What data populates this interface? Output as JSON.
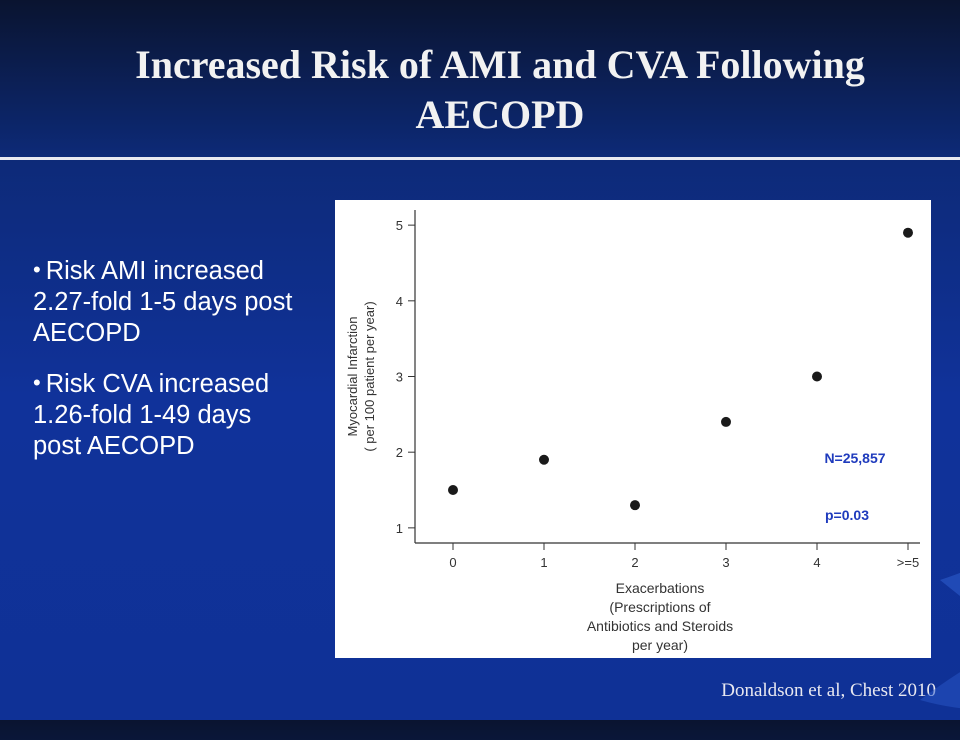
{
  "slide": {
    "title_line1": "Increased Risk of AMI and CVA Following",
    "title_line2": "AECOPD",
    "bullets": [
      "Risk AMI increased 2.27-fold 1-5 days post AECOPD",
      "Risk CVA increased 1.26-fold 1-49 days post AECOPD"
    ],
    "citation": "Donaldson et al, Chest 2010",
    "colors": {
      "title": "#f2f2f2",
      "accent_text": "#1f3bbd",
      "marker": "#1a1a1a"
    }
  },
  "chart_data": {
    "type": "scatter",
    "categories": [
      "0",
      "1",
      "2",
      "3",
      "4",
      ">=5"
    ],
    "values": [
      1.5,
      1.9,
      1.3,
      2.4,
      3.0,
      4.9
    ],
    "ylim": [
      0.8,
      5.2
    ],
    "yticks": [
      "1",
      "2",
      "3",
      "4",
      "5"
    ],
    "ylabel_lines": [
      "Myocardial Infarction",
      "( per 100 patient per year)"
    ],
    "xlabel_lines": [
      "Exacerbations",
      "(Prescriptions of",
      "Antibiotics and Steroids",
      "per year)"
    ],
    "annotations": [
      "N=25,857",
      "p=0.03"
    ],
    "grid": false
  }
}
